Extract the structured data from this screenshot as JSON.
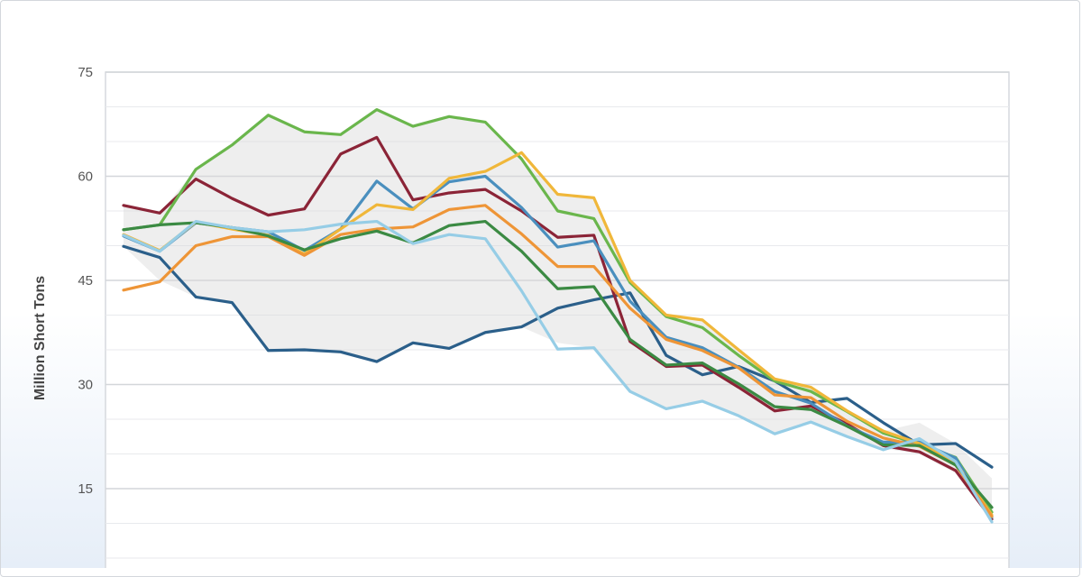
{
  "chart_data": {
    "type": "line",
    "title": "",
    "xlabel": "",
    "ylabel": "Million Short Tons",
    "ylim": [
      5,
      75
    ],
    "yticks": [
      15,
      30,
      45,
      60,
      75
    ],
    "grid": true,
    "x": [
      0,
      1,
      2,
      3,
      4,
      5,
      6,
      7,
      8,
      9,
      10,
      11,
      12,
      13,
      14,
      15,
      16,
      17,
      18,
      19,
      20,
      21,
      22,
      23,
      24
    ],
    "band": {
      "upper": [
        55.8,
        54.7,
        61.0,
        64.5,
        68.8,
        66.4,
        66.0,
        69.6,
        67.2,
        68.6,
        67.8,
        62.5,
        57.5,
        56.9,
        45.0,
        40.0,
        39.3,
        35.0,
        30.8,
        29.6,
        26.2,
        23.3,
        24.5,
        21.5,
        16.5
      ],
      "lower": [
        49.9,
        45.0,
        42.6,
        41.8,
        34.9,
        35.0,
        34.7,
        33.3,
        36.0,
        35.2,
        37.5,
        38.3,
        36.0,
        35.3,
        29.0,
        26.5,
        27.6,
        25.5,
        22.9,
        24.6,
        22.5,
        20.8,
        20.0,
        17.2,
        10.2
      ]
    },
    "series": [
      {
        "color": "#2b5f8a",
        "values": [
          49.9,
          48.3,
          42.6,
          41.8,
          34.9,
          35.0,
          34.7,
          33.3,
          36.0,
          35.2,
          37.5,
          38.3,
          41.0,
          42.2,
          43.2,
          34.2,
          31.4,
          32.6,
          30.5,
          27.4,
          28.0,
          24.5,
          21.3,
          21.5,
          18.1
        ]
      },
      {
        "color": "#8b2437",
        "values": [
          55.8,
          54.7,
          59.6,
          56.8,
          54.4,
          55.3,
          63.2,
          65.6,
          56.6,
          57.6,
          58.1,
          55.0,
          51.2,
          51.5,
          36.2,
          32.6,
          32.8,
          29.6,
          26.2,
          26.9,
          24.3,
          21.2,
          20.3,
          17.6,
          10.6
        ]
      },
      {
        "color": "#6ab64c",
        "values": [
          52.3,
          53.0,
          61.0,
          64.5,
          68.8,
          66.4,
          66.0,
          69.6,
          67.2,
          68.6,
          67.8,
          62.5,
          55.0,
          53.9,
          44.7,
          39.8,
          38.2,
          34.2,
          30.5,
          29.0,
          26.1,
          23.0,
          21.4,
          19.5,
          11.6
        ]
      },
      {
        "color": "#4a8fbe",
        "values": [
          51.4,
          49.2,
          53.3,
          52.6,
          52.0,
          49.3,
          52.4,
          59.3,
          55.3,
          59.2,
          60.0,
          55.5,
          49.8,
          50.7,
          42.0,
          36.8,
          35.3,
          32.5,
          29.0,
          27.3,
          24.0,
          21.7,
          21.7,
          19.4,
          10.9
        ]
      },
      {
        "color": "#f0b73a",
        "values": [
          51.6,
          49.3,
          53.4,
          52.4,
          51.5,
          48.8,
          52.4,
          55.9,
          55.2,
          59.7,
          60.7,
          63.4,
          57.4,
          56.9,
          45.0,
          40.0,
          39.3,
          35.0,
          30.8,
          29.6,
          26.2,
          23.3,
          21.5,
          18.8,
          11.2
        ]
      },
      {
        "color": "#ee9537",
        "values": [
          43.6,
          44.8,
          50.0,
          51.3,
          51.3,
          48.6,
          51.6,
          52.4,
          52.7,
          55.2,
          55.8,
          51.7,
          47.0,
          47.0,
          41.0,
          36.5,
          34.9,
          32.4,
          28.5,
          28.1,
          24.7,
          22.3,
          21.1,
          18.4,
          11.0
        ]
      },
      {
        "color": "#3b8a43",
        "values": [
          52.3,
          53.0,
          53.3,
          52.6,
          51.4,
          49.4,
          51.0,
          52.1,
          50.4,
          52.9,
          53.5,
          49.2,
          43.8,
          44.1,
          36.5,
          32.8,
          33.1,
          30.1,
          26.8,
          26.4,
          24.0,
          21.3,
          21.2,
          18.4,
          12.3
        ]
      },
      {
        "color": "#96cde6",
        "values": [
          51.5,
          49.2,
          53.5,
          52.6,
          52.0,
          52.3,
          53.1,
          53.5,
          50.3,
          51.6,
          51.0,
          43.5,
          35.1,
          35.3,
          29.0,
          26.5,
          27.6,
          25.5,
          22.9,
          24.6,
          22.5,
          20.6,
          22.2,
          18.9,
          10.2
        ]
      }
    ]
  }
}
